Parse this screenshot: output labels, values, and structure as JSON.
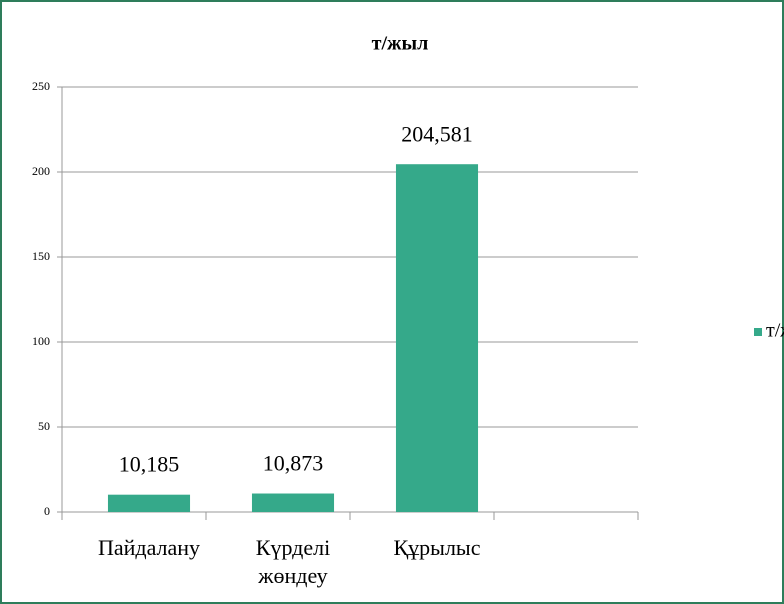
{
  "chart_data": {
    "type": "bar",
    "title": "т/жыл",
    "categories": [
      "Пайдалану",
      "Күрделі жөндеу",
      "Құрылыс",
      null
    ],
    "series": [
      {
        "name": "т/жыл",
        "color": "#35a98a",
        "values": [
          10.185,
          10.873,
          204.581,
          null
        ],
        "value_labels": [
          "10,185",
          "10,873",
          "204,581",
          null
        ]
      }
    ],
    "ylim": [
      0,
      250
    ],
    "yticks": [
      0,
      50,
      100,
      150,
      200,
      250
    ],
    "grid": true,
    "legend": "right"
  }
}
